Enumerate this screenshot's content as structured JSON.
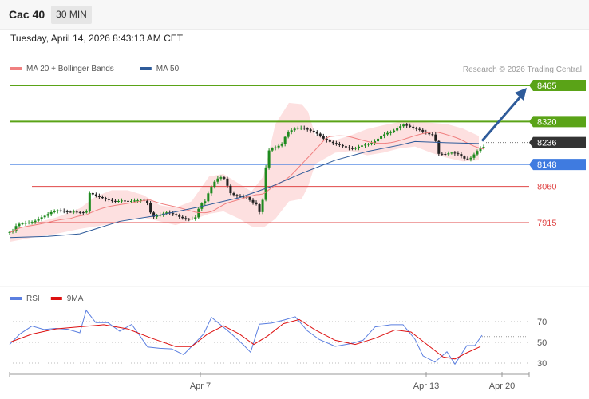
{
  "header": {
    "title": "Cac 40",
    "timeframe": "30 MIN"
  },
  "datetime": "Tuesday, April 14, 2026 8:43:13 AM CET",
  "copyright": "Research © 2026 Trading Central",
  "colors": {
    "bollinger": "#f08080",
    "ma50": "#2e5b9a",
    "resistance": "#5aa317",
    "support": "#3f7be0",
    "minor": "#e04848",
    "rsi": "#5b7fe0",
    "rsi_ma": "#dd1111",
    "price_tag": "#333333"
  },
  "chart_data": [
    {
      "type": "candlestick",
      "legend": [
        {
          "name": "MA 20 + Bollinger Bands",
          "color": "#f08080"
        },
        {
          "name": "MA 50",
          "color": "#2e5b9a"
        }
      ],
      "levels": [
        {
          "label": "8465",
          "value": 8465,
          "kind": "resistance"
        },
        {
          "label": "8320",
          "value": 8320,
          "kind": "resistance"
        },
        {
          "label": "8148",
          "value": 8148,
          "kind": "support"
        },
        {
          "label": "8060",
          "value": 8060,
          "kind": "minor"
        },
        {
          "label": "7915",
          "value": 7915,
          "kind": "minor"
        }
      ],
      "last_price": {
        "label": "8236",
        "value": 8236
      },
      "x_ticks": [
        "Apr 7",
        "Apr 13",
        "Apr 20"
      ],
      "forecast": {
        "from": 8236,
        "to": 8465,
        "direction": "up"
      },
      "ylim": [
        7790,
        8500
      ]
    },
    {
      "type": "line",
      "legend": [
        {
          "name": "RSI",
          "color": "#5b7fe0"
        },
        {
          "name": "9MA",
          "color": "#dd1111"
        }
      ],
      "y_ticks": [
        "70",
        "50",
        "30"
      ],
      "ylim": [
        20,
        85
      ]
    }
  ]
}
